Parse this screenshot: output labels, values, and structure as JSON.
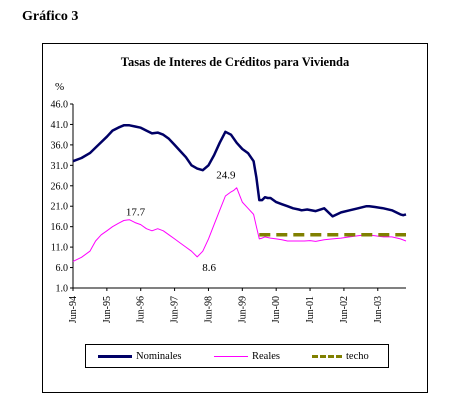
{
  "page": {
    "figure_label": "Gráfico 3"
  },
  "chart_data": {
    "type": "line",
    "title": "Tasas de Interes de Créditos para Vivienda",
    "ylabel": "%",
    "xlabel": "",
    "ylim": [
      1.0,
      46.0
    ],
    "yticks": [
      "46.0",
      "41.0",
      "36.0",
      "31.0",
      "26.0",
      "21.0",
      "16.0",
      "11.0",
      "6.0",
      "1.0"
    ],
    "x_tick_labels": [
      "Jun-94",
      "Jun-95",
      "Jun-96",
      "Jun-97",
      "Jun-98",
      "Jun-99",
      "Jun-00",
      "Jun-01",
      "Jun-02",
      "Jun-03"
    ],
    "x_months_span": [
      0,
      118
    ],
    "grid": false,
    "legend_placement": "bottom",
    "series": [
      {
        "name": "Nominales",
        "color": "#000066",
        "x": [
          0,
          3,
          6,
          9,
          12,
          14,
          16,
          18,
          20,
          22,
          24,
          26,
          28,
          30,
          32,
          34,
          36,
          38,
          40,
          42,
          44,
          46,
          48,
          50,
          52,
          54,
          56,
          58,
          60,
          62,
          64,
          65,
          66,
          67,
          68,
          69,
          70,
          72,
          74,
          76,
          78,
          80,
          81,
          83,
          86,
          89,
          92,
          95,
          98,
          101,
          104,
          105,
          107,
          110,
          113,
          116,
          117,
          118
        ],
        "y": [
          32.0,
          32.8,
          34.0,
          36.0,
          38.0,
          39.5,
          40.2,
          40.8,
          40.8,
          40.5,
          40.2,
          39.5,
          38.8,
          39.0,
          38.5,
          37.5,
          36.0,
          34.5,
          33.0,
          31.0,
          30.2,
          29.8,
          31.0,
          33.5,
          36.5,
          39.2,
          38.5,
          36.5,
          35.0,
          34.0,
          32.0,
          28.0,
          22.5,
          22.5,
          23.2,
          23.0,
          23.0,
          22.0,
          21.5,
          21.0,
          20.5,
          20.2,
          20.0,
          20.2,
          19.8,
          20.5,
          18.5,
          19.5,
          20.0,
          20.5,
          21.0,
          21.0,
          20.8,
          20.5,
          20.0,
          19.0,
          18.8,
          19.0
        ]
      },
      {
        "name": "Reales",
        "color": "#ff00ff",
        "x": [
          0,
          3,
          6,
          8,
          10,
          12,
          14,
          16,
          18,
          20,
          22,
          24,
          26,
          28,
          30,
          32,
          34,
          36,
          38,
          40,
          42,
          44,
          46,
          48,
          50,
          52,
          54,
          56,
          57,
          58,
          60,
          62,
          64,
          65,
          66,
          67,
          68,
          70,
          72,
          74,
          76,
          78,
          80,
          82,
          84,
          86,
          89,
          92,
          95,
          98,
          101,
          104,
          107,
          110,
          113,
          116,
          118
        ],
        "y": [
          7.5,
          8.5,
          10.0,
          12.5,
          14.0,
          15.0,
          16.0,
          16.8,
          17.5,
          17.7,
          17.0,
          16.5,
          15.5,
          15.0,
          15.5,
          15.0,
          14.0,
          13.0,
          12.0,
          11.0,
          10.0,
          8.6,
          10.0,
          13.0,
          16.5,
          20.0,
          23.5,
          24.5,
          24.9,
          25.5,
          22.0,
          20.5,
          19.0,
          16.0,
          13.0,
          13.2,
          13.5,
          13.2,
          13.0,
          12.8,
          12.5,
          12.5,
          12.5,
          12.5,
          12.6,
          12.4,
          12.8,
          13.0,
          13.2,
          13.5,
          13.8,
          14.0,
          13.8,
          13.5,
          13.5,
          13.0,
          12.5
        ]
      },
      {
        "name": "techo",
        "color": "#808000",
        "dashed": true,
        "x": [
          66,
          118
        ],
        "y": [
          14.0,
          14.0
        ]
      }
    ],
    "annotations": [
      {
        "text": "17.7",
        "x": 20,
        "y": 17.7
      },
      {
        "text": "24.9",
        "x": 57,
        "y": 24.9
      },
      {
        "text": "8.6",
        "x": 44,
        "y": 8.6
      }
    ]
  }
}
